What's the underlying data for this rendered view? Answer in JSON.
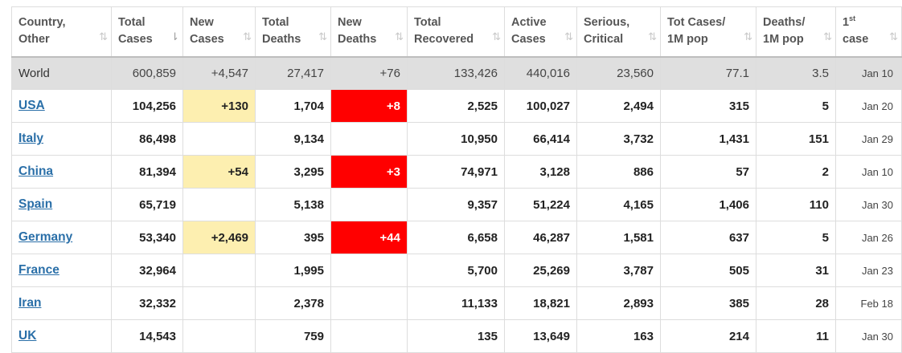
{
  "headers": [
    {
      "line1": "Country,",
      "line2": "Other",
      "sort": "⇅",
      "sup": ""
    },
    {
      "line1": "Total",
      "line2": "Cases",
      "sort": "⇂",
      "sup": ""
    },
    {
      "line1": "New",
      "line2": "Cases",
      "sort": "⇅",
      "sup": ""
    },
    {
      "line1": "Total",
      "line2": "Deaths",
      "sort": "⇅",
      "sup": ""
    },
    {
      "line1": "New",
      "line2": "Deaths",
      "sort": "⇅",
      "sup": ""
    },
    {
      "line1": "Total",
      "line2": "Recovered",
      "sort": "⇅",
      "sup": ""
    },
    {
      "line1": "Active",
      "line2": "Cases",
      "sort": "⇅",
      "sup": ""
    },
    {
      "line1": "Serious,",
      "line2": "Critical",
      "sort": "⇅",
      "sup": ""
    },
    {
      "line1": "Tot Cases/",
      "line2": "1M pop",
      "sort": "⇅",
      "sup": ""
    },
    {
      "line1": "Deaths/",
      "line2": "1M pop",
      "sort": "⇅",
      "sup": ""
    },
    {
      "line1": "1",
      "line2": "case",
      "sort": "⇅",
      "sup": "st"
    }
  ],
  "rows": [
    {
      "country": "World",
      "total_cases": "600,859",
      "new_cases": "+4,547",
      "total_deaths": "27,417",
      "new_deaths": "+76",
      "total_recovered": "133,426",
      "active_cases": "440,016",
      "serious_critical": "23,560",
      "cases_per_1m": "77.1",
      "deaths_per_1m": "3.5",
      "first_case": "Jan 10"
    },
    {
      "country": "USA",
      "total_cases": "104,256",
      "new_cases": "+130",
      "total_deaths": "1,704",
      "new_deaths": "+8",
      "total_recovered": "2,525",
      "active_cases": "100,027",
      "serious_critical": "2,494",
      "cases_per_1m": "315",
      "deaths_per_1m": "5",
      "first_case": "Jan 20"
    },
    {
      "country": "Italy",
      "total_cases": "86,498",
      "new_cases": "",
      "total_deaths": "9,134",
      "new_deaths": "",
      "total_recovered": "10,950",
      "active_cases": "66,414",
      "serious_critical": "3,732",
      "cases_per_1m": "1,431",
      "deaths_per_1m": "151",
      "first_case": "Jan 29"
    },
    {
      "country": "China",
      "total_cases": "81,394",
      "new_cases": "+54",
      "total_deaths": "3,295",
      "new_deaths": "+3",
      "total_recovered": "74,971",
      "active_cases": "3,128",
      "serious_critical": "886",
      "cases_per_1m": "57",
      "deaths_per_1m": "2",
      "first_case": "Jan 10"
    },
    {
      "country": "Spain",
      "total_cases": "65,719",
      "new_cases": "",
      "total_deaths": "5,138",
      "new_deaths": "",
      "total_recovered": "9,357",
      "active_cases": "51,224",
      "serious_critical": "4,165",
      "cases_per_1m": "1,406",
      "deaths_per_1m": "110",
      "first_case": "Jan 30"
    },
    {
      "country": "Germany",
      "total_cases": "53,340",
      "new_cases": "+2,469",
      "total_deaths": "395",
      "new_deaths": "+44",
      "total_recovered": "6,658",
      "active_cases": "46,287",
      "serious_critical": "1,581",
      "cases_per_1m": "637",
      "deaths_per_1m": "5",
      "first_case": "Jan 26"
    },
    {
      "country": "France",
      "total_cases": "32,964",
      "new_cases": "",
      "total_deaths": "1,995",
      "new_deaths": "",
      "total_recovered": "5,700",
      "active_cases": "25,269",
      "serious_critical": "3,787",
      "cases_per_1m": "505",
      "deaths_per_1m": "31",
      "first_case": "Jan 23"
    },
    {
      "country": "Iran",
      "total_cases": "32,332",
      "new_cases": "",
      "total_deaths": "2,378",
      "new_deaths": "",
      "total_recovered": "11,133",
      "active_cases": "18,821",
      "serious_critical": "2,893",
      "cases_per_1m": "385",
      "deaths_per_1m": "28",
      "first_case": "Feb 18"
    },
    {
      "country": "UK",
      "total_cases": "14,543",
      "new_cases": "",
      "total_deaths": "759",
      "new_deaths": "",
      "total_recovered": "135",
      "active_cases": "13,649",
      "serious_critical": "163",
      "cases_per_1m": "214",
      "deaths_per_1m": "11",
      "first_case": "Jan 30"
    }
  ],
  "colors": {
    "header_text": "#555555",
    "link": "#2a6fa8",
    "world_row_bg": "#dfdfdf",
    "new_cases_highlight": "#fdefb0",
    "new_deaths_highlight": "#ff0000",
    "border": "#dddddd"
  },
  "icons": {
    "sort": "sort-arrows-icon",
    "sort_active": "sort-descending-icon"
  }
}
